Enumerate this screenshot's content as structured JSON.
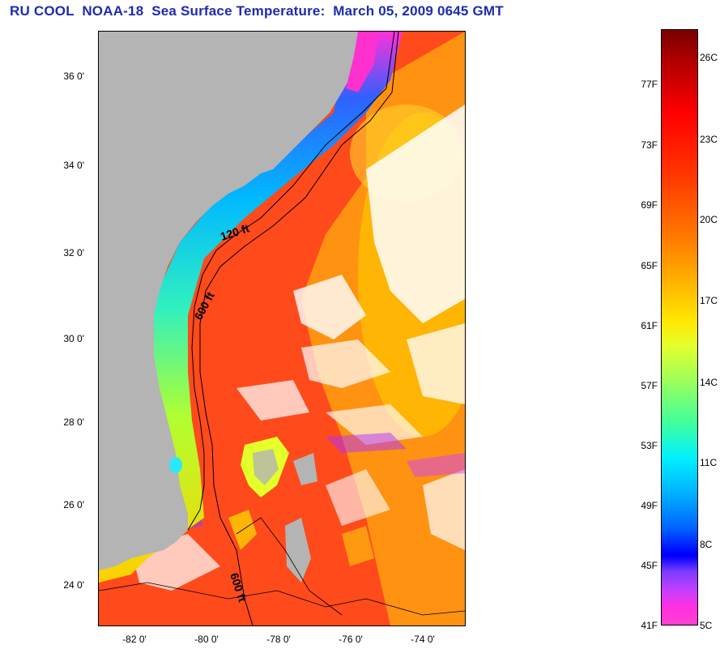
{
  "title": "RU COOL  NOAA-18  Sea Surface Temperature:  March 05, 2009 0645 GMT",
  "map": {
    "lat_ticks": [
      "36 0'",
      "34 0'",
      "32 0'",
      "30 0'",
      "28 0'",
      "26 0'",
      "24 0'"
    ],
    "lon_ticks": [
      "-82 0'",
      "-80 0'",
      "-78 0'",
      "-76 0'",
      "-74 0'"
    ],
    "contour_labels": [
      "120 ft",
      "600 ft",
      "600 ft"
    ],
    "land_color": "#b4b4b4"
  },
  "colorbar": {
    "fahrenheit_labels": [
      "77F",
      "73F",
      "69F",
      "65F",
      "61F",
      "57F",
      "53F",
      "49F",
      "45F",
      "41F"
    ],
    "celsius_labels": [
      "26C",
      "23C",
      "20C",
      "17C",
      "14C",
      "11C",
      "8C",
      "5C"
    ]
  }
}
